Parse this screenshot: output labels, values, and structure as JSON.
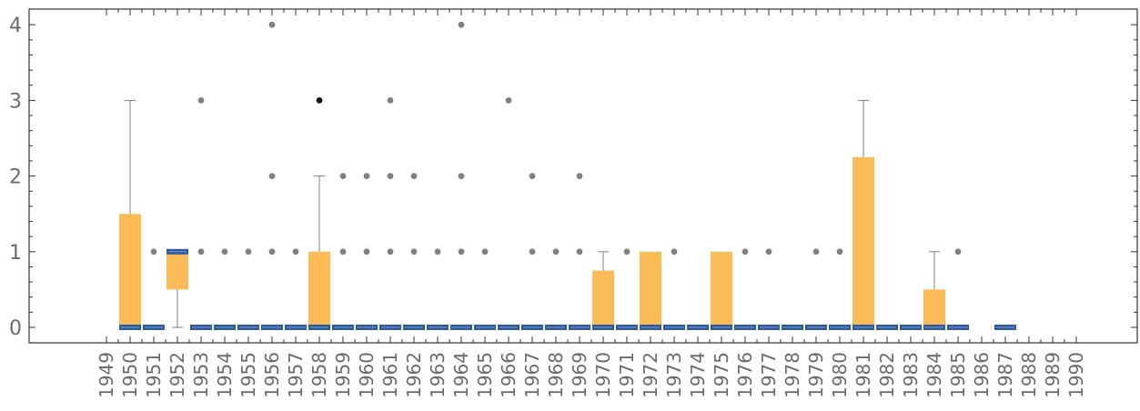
{
  "chart_data": {
    "type": "box",
    "title": "",
    "xlabel": "",
    "ylabel": "",
    "ylim": [
      -0.2,
      4.2
    ],
    "yticks": [
      "0",
      "1",
      "2",
      "3",
      "4"
    ],
    "categories": [
      "1949",
      "1950",
      "1951",
      "1952",
      "1953",
      "1954",
      "1955",
      "1956",
      "1957",
      "1958",
      "1959",
      "1960",
      "1961",
      "1962",
      "1963",
      "1964",
      "1965",
      "1966",
      "1967",
      "1968",
      "1969",
      "1970",
      "1971",
      "1972",
      "1973",
      "1974",
      "1975",
      "1976",
      "1977",
      "1978",
      "1979",
      "1980",
      "1981",
      "1982",
      "1983",
      "1984",
      "1985",
      "1986",
      "1987",
      "1988",
      "1989",
      "1990"
    ],
    "boxes": [
      {
        "year": "1950",
        "q1": 0,
        "median": 0,
        "q3": 1.5,
        "whisker_low": 0,
        "whisker_high": 3,
        "outliers": []
      },
      {
        "year": "1951",
        "q1": 0,
        "median": 0,
        "q3": 0,
        "whisker_low": 0,
        "whisker_high": 0,
        "outliers": [
          1
        ]
      },
      {
        "year": "1952",
        "q1": 0.5,
        "median": 1,
        "q3": 1,
        "whisker_low": 0,
        "whisker_high": 1,
        "outliers": []
      },
      {
        "year": "1953",
        "q1": 0,
        "median": 0,
        "q3": 0,
        "whisker_low": 0,
        "whisker_high": 0,
        "outliers": [
          1,
          3
        ]
      },
      {
        "year": "1954",
        "q1": 0,
        "median": 0,
        "q3": 0,
        "whisker_low": 0,
        "whisker_high": 0,
        "outliers": [
          1
        ]
      },
      {
        "year": "1955",
        "q1": 0,
        "median": 0,
        "q3": 0,
        "whisker_low": 0,
        "whisker_high": 0,
        "outliers": [
          1
        ]
      },
      {
        "year": "1956",
        "q1": 0,
        "median": 0,
        "q3": 0,
        "whisker_low": 0,
        "whisker_high": 0,
        "outliers": [
          1,
          2,
          4
        ]
      },
      {
        "year": "1957",
        "q1": 0,
        "median": 0,
        "q3": 0,
        "whisker_low": 0,
        "whisker_high": 0,
        "outliers": [
          1
        ]
      },
      {
        "year": "1958",
        "q1": 0,
        "median": 0,
        "q3": 1,
        "whisker_low": 0,
        "whisker_high": 2,
        "outliers": [
          3
        ]
      },
      {
        "year": "1959",
        "q1": 0,
        "median": 0,
        "q3": 0,
        "whisker_low": 0,
        "whisker_high": 0,
        "outliers": [
          1,
          2
        ]
      },
      {
        "year": "1960",
        "q1": 0,
        "median": 0,
        "q3": 0,
        "whisker_low": 0,
        "whisker_high": 0,
        "outliers": [
          1,
          2
        ]
      },
      {
        "year": "1961",
        "q1": 0,
        "median": 0,
        "q3": 0,
        "whisker_low": 0,
        "whisker_high": 0,
        "outliers": [
          1,
          2,
          3
        ]
      },
      {
        "year": "1962",
        "q1": 0,
        "median": 0,
        "q3": 0,
        "whisker_low": 0,
        "whisker_high": 0,
        "outliers": [
          1,
          2
        ]
      },
      {
        "year": "1963",
        "q1": 0,
        "median": 0,
        "q3": 0,
        "whisker_low": 0,
        "whisker_high": 0,
        "outliers": [
          1
        ]
      },
      {
        "year": "1964",
        "q1": 0,
        "median": 0,
        "q3": 0,
        "whisker_low": 0,
        "whisker_high": 0,
        "outliers": [
          1,
          2,
          4
        ]
      },
      {
        "year": "1965",
        "q1": 0,
        "median": 0,
        "q3": 0,
        "whisker_low": 0,
        "whisker_high": 0,
        "outliers": [
          1
        ]
      },
      {
        "year": "1966",
        "q1": 0,
        "median": 0,
        "q3": 0,
        "whisker_low": 0,
        "whisker_high": 0,
        "outliers": [
          3
        ]
      },
      {
        "year": "1967",
        "q1": 0,
        "median": 0,
        "q3": 0,
        "whisker_low": 0,
        "whisker_high": 0,
        "outliers": [
          1,
          2
        ]
      },
      {
        "year": "1968",
        "q1": 0,
        "median": 0,
        "q3": 0,
        "whisker_low": 0,
        "whisker_high": 0,
        "outliers": [
          1
        ]
      },
      {
        "year": "1969",
        "q1": 0,
        "median": 0,
        "q3": 0,
        "whisker_low": 0,
        "whisker_high": 0,
        "outliers": [
          1,
          2
        ]
      },
      {
        "year": "1970",
        "q1": 0,
        "median": 0,
        "q3": 0.75,
        "whisker_low": 0,
        "whisker_high": 1,
        "outliers": []
      },
      {
        "year": "1971",
        "q1": 0,
        "median": 0,
        "q3": 0,
        "whisker_low": 0,
        "whisker_high": 0,
        "outliers": [
          1
        ]
      },
      {
        "year": "1972",
        "q1": 0,
        "median": 0,
        "q3": 1,
        "whisker_low": 0,
        "whisker_high": 1,
        "outliers": []
      },
      {
        "year": "1973",
        "q1": 0,
        "median": 0,
        "q3": 0,
        "whisker_low": 0,
        "whisker_high": 0,
        "outliers": [
          1
        ]
      },
      {
        "year": "1974",
        "q1": 0,
        "median": 0,
        "q3": 0,
        "whisker_low": 0,
        "whisker_high": 0,
        "outliers": []
      },
      {
        "year": "1975",
        "q1": 0,
        "median": 0,
        "q3": 1,
        "whisker_low": 0,
        "whisker_high": 1,
        "outliers": []
      },
      {
        "year": "1976",
        "q1": 0,
        "median": 0,
        "q3": 0,
        "whisker_low": 0,
        "whisker_high": 0,
        "outliers": [
          1
        ]
      },
      {
        "year": "1977",
        "q1": 0,
        "median": 0,
        "q3": 0,
        "whisker_low": 0,
        "whisker_high": 0,
        "outliers": [
          1
        ]
      },
      {
        "year": "1978",
        "q1": 0,
        "median": 0,
        "q3": 0,
        "whisker_low": 0,
        "whisker_high": 0,
        "outliers": []
      },
      {
        "year": "1979",
        "q1": 0,
        "median": 0,
        "q3": 0,
        "whisker_low": 0,
        "whisker_high": 0,
        "outliers": [
          1
        ]
      },
      {
        "year": "1980",
        "q1": 0,
        "median": 0,
        "q3": 0,
        "whisker_low": 0,
        "whisker_high": 0,
        "outliers": [
          1
        ]
      },
      {
        "year": "1981",
        "q1": 0,
        "median": 0,
        "q3": 2.25,
        "whisker_low": 0,
        "whisker_high": 3,
        "outliers": []
      },
      {
        "year": "1982",
        "q1": 0,
        "median": 0,
        "q3": 0,
        "whisker_low": 0,
        "whisker_high": 0,
        "outliers": []
      },
      {
        "year": "1983",
        "q1": 0,
        "median": 0,
        "q3": 0,
        "whisker_low": 0,
        "whisker_high": 0,
        "outliers": []
      },
      {
        "year": "1984",
        "q1": 0,
        "median": 0,
        "q3": 0.5,
        "whisker_low": 0,
        "whisker_high": 1,
        "outliers": []
      },
      {
        "year": "1985",
        "q1": 0,
        "median": 0,
        "q3": 0,
        "whisker_low": 0,
        "whisker_high": 0,
        "outliers": [
          1
        ]
      },
      {
        "year": "1987",
        "q1": 0,
        "median": 0,
        "q3": 0,
        "whisker_low": 0,
        "whisker_high": 0,
        "outliers": []
      }
    ],
    "colors": {
      "box_fill": "#fbbc57",
      "median": "#2b5a9e",
      "whisker": "#808080",
      "outlier": "#808080",
      "axis": "#333333",
      "tick_label": "#6b6b6b"
    }
  }
}
